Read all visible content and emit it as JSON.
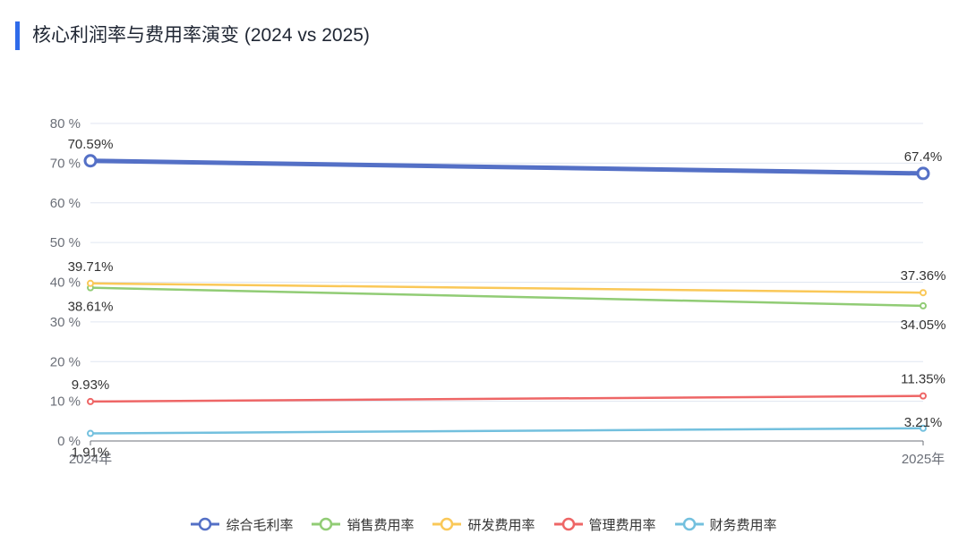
{
  "title": "核心利润率与费用率演变 (2024 vs 2025)",
  "chart_data": {
    "type": "line",
    "title": "核心利润率与费用率演变 (2024 vs 2025)",
    "x": [
      "2024年",
      "2025年"
    ],
    "ylabel": "",
    "xlabel": "",
    "ylim": [
      0,
      80
    ],
    "yticks": [
      "0 %",
      "10 %",
      "20 %",
      "30 %",
      "40 %",
      "50 %",
      "60 %",
      "70 %",
      "80 %"
    ],
    "grid": true,
    "legend_position": "bottom",
    "series": [
      {
        "name": "综合毛利率",
        "values": [
          70.59,
          67.4
        ],
        "labels": [
          "70.59%",
          "67.4%"
        ],
        "color": "#5470c6"
      },
      {
        "name": "销售费用率",
        "values": [
          38.61,
          34.05
        ],
        "labels": [
          "38.61%",
          "34.05%"
        ],
        "color": "#91cc75"
      },
      {
        "name": "研发费用率",
        "values": [
          39.71,
          37.36
        ],
        "labels": [
          "39.71%",
          "37.36%"
        ],
        "color": "#fac858"
      },
      {
        "name": "管理费用率",
        "values": [
          9.93,
          11.35
        ],
        "labels": [
          "9.93%",
          "11.35%"
        ],
        "color": "#ee6666"
      },
      {
        "name": "财务费用率",
        "values": [
          1.91,
          3.21
        ],
        "labels": [
          "1.91%",
          "3.21%"
        ],
        "color": "#73c0de"
      }
    ]
  },
  "legend": [
    {
      "label": "综合毛利率",
      "color": "#5470c6"
    },
    {
      "label": "销售费用率",
      "color": "#91cc75"
    },
    {
      "label": "研发费用率",
      "color": "#fac858"
    },
    {
      "label": "管理费用率",
      "color": "#ee6666"
    },
    {
      "label": "财务费用率",
      "color": "#73c0de"
    }
  ]
}
